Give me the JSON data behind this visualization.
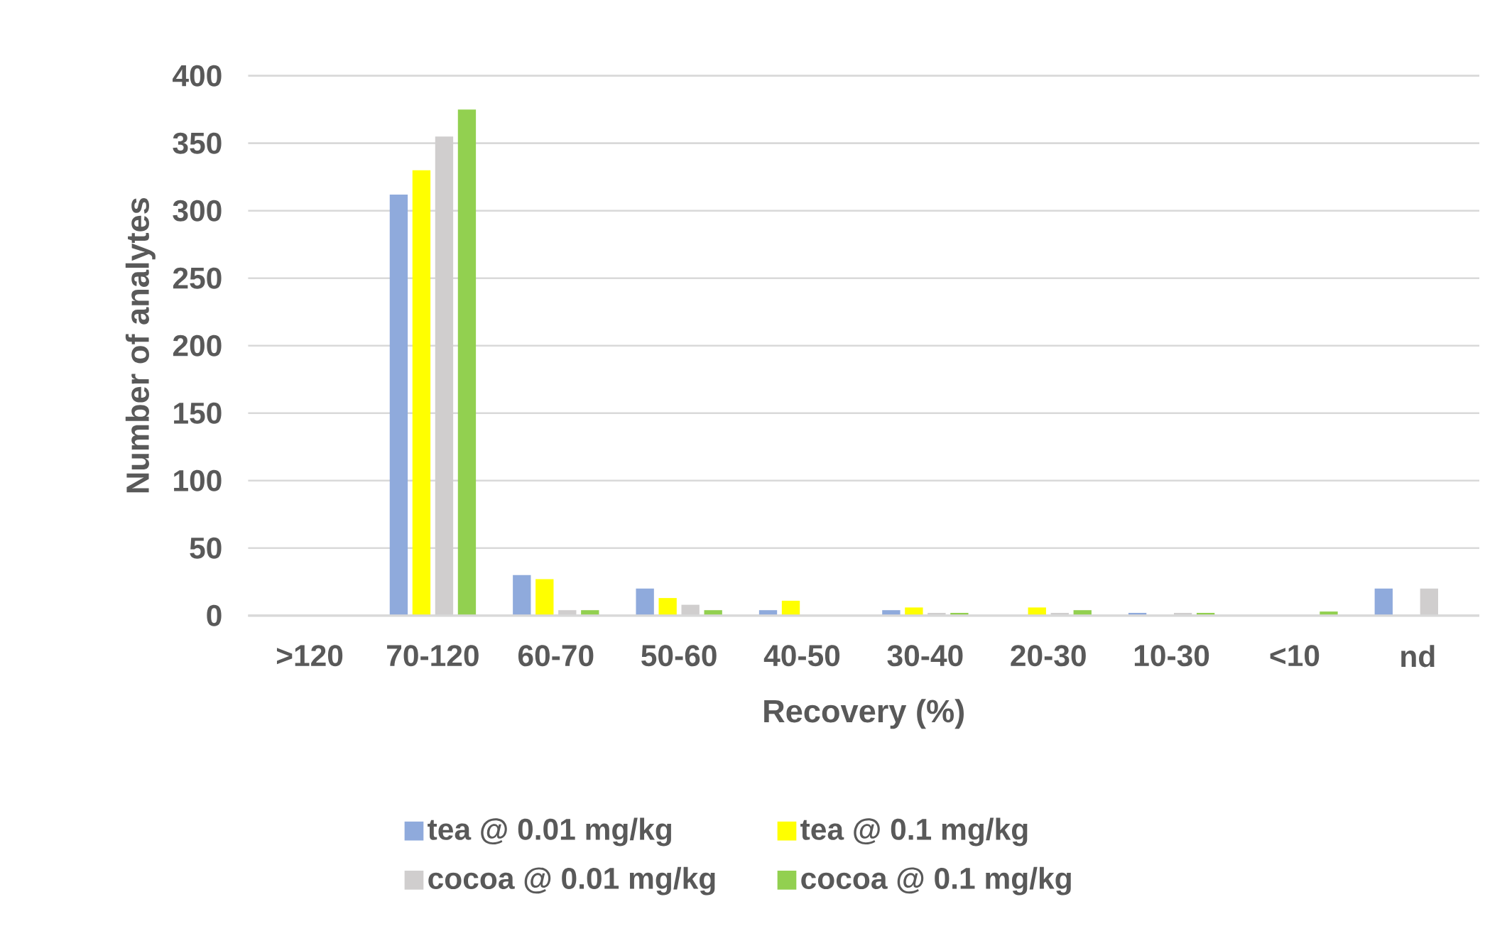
{
  "chart_data": {
    "type": "bar",
    "xlabel": "Recovery (%)",
    "ylabel": "Number of analytes",
    "categories": [
      ">120",
      "70-120",
      "60-70",
      "50-60",
      "40-50",
      "30-40",
      "20-30",
      "10-30",
      "<10",
      "nd"
    ],
    "series": [
      {
        "name": "tea @ 0.01 mg/kg",
        "color": "#8faadc",
        "values": [
          null,
          312,
          30,
          20,
          4,
          4,
          0,
          2,
          0,
          20
        ]
      },
      {
        "name": "tea @ 0.1 mg/kg",
        "color": "#ffff00",
        "values": [
          0,
          330,
          27,
          13,
          11,
          6,
          6,
          0,
          0,
          0
        ]
      },
      {
        "name": "cocoa @ 0.01 mg/kg",
        "color": "#d0cece",
        "values": [
          null,
          355,
          4,
          8,
          null,
          2,
          2,
          2,
          0,
          20
        ]
      },
      {
        "name": "cocoa @ 0.1 mg/kg",
        "color": "#92d050",
        "values": [
          0,
          375,
          4,
          4,
          0,
          2,
          4,
          2,
          3,
          0
        ]
      }
    ],
    "ylim": [
      0,
      400
    ],
    "yticks": [
      0,
      50,
      100,
      150,
      200,
      250,
      300,
      350,
      400
    ],
    "grid": "y",
    "legend": "bottom"
  }
}
